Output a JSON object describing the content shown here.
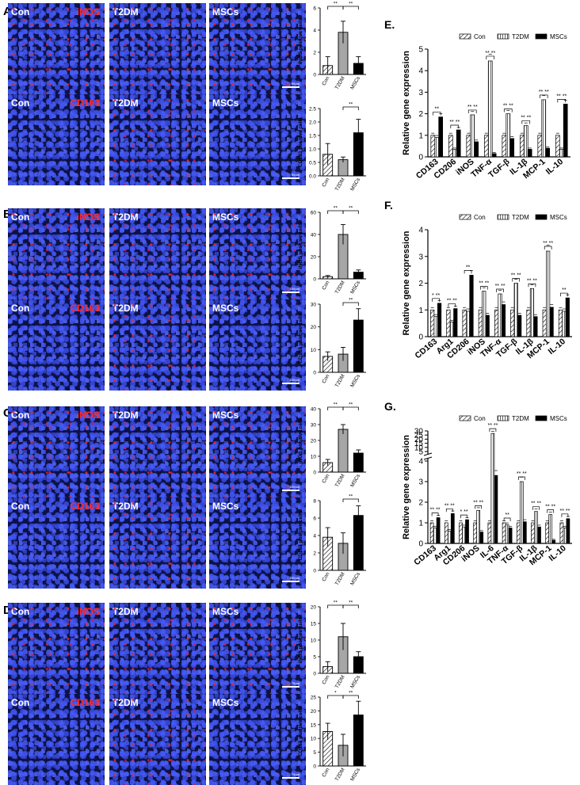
{
  "panels": [
    {
      "letter": "A.",
      "rows": [
        {
          "marker": "iNOS",
          "scale": "50μm"
        },
        {
          "marker": "CD163",
          "scale": "50μm"
        }
      ]
    },
    {
      "letter": "B.",
      "rows": [
        {
          "marker": "iNOS",
          "scale": "100μm"
        },
        {
          "marker": "CD163",
          "scale": "100μm"
        }
      ]
    },
    {
      "letter": "C.",
      "rows": [
        {
          "marker": "iNOS",
          "scale": "100μm"
        },
        {
          "marker": "CD163",
          "scale": "100μm"
        }
      ]
    },
    {
      "letter": "D.",
      "rows": [
        {
          "marker": "iNOS",
          "scale": "75μm"
        },
        {
          "marker": "CD163",
          "scale": "75μm"
        }
      ]
    }
  ],
  "groups": [
    "Con",
    "T2DM",
    "MSCs"
  ],
  "colors": {
    "con": "#ffffff",
    "t2dm": "#a6a6a6",
    "mscs": "#000000",
    "red_label": "#ff2a2a"
  },
  "chart_data": [
    {
      "type": "bar",
      "id": "A-iNOS",
      "categories": [
        "Con",
        "T2DM",
        "MSCs"
      ],
      "values": [
        0.8,
        3.8,
        1.0
      ],
      "errors": [
        0.8,
        1.0,
        0.6
      ],
      "ylabel": "iNOS positive cells",
      "ylim": [
        0,
        6
      ],
      "yticks": [
        0,
        2,
        4,
        6
      ],
      "sig": [
        {
          "from": 0,
          "to": 1,
          "label": "**"
        },
        {
          "from": 1,
          "to": 2,
          "label": "**"
        }
      ]
    },
    {
      "type": "bar",
      "id": "A-CD163",
      "categories": [
        "Con",
        "T2DM",
        "MSCs"
      ],
      "values": [
        0.8,
        0.6,
        1.6
      ],
      "errors": [
        0.4,
        0.1,
        0.5
      ],
      "ylabel": "CD163 positive cells",
      "ylim": [
        0,
        2.5
      ],
      "yticks": [
        0,
        0.5,
        1.0,
        1.5,
        2.0,
        2.5
      ],
      "yticklabels": [
        "0.0",
        "0.5",
        "1.0",
        "1.5",
        "2.0",
        "2.5"
      ],
      "sig": [
        {
          "from": 1,
          "to": 2,
          "label": "**"
        }
      ]
    },
    {
      "type": "bar",
      "id": "B-iNOS",
      "categories": [
        "Con",
        "T2DM",
        "MSCs"
      ],
      "values": [
        2,
        40,
        6
      ],
      "errors": [
        1,
        9,
        2
      ],
      "ylabel": "iNOS positive cells",
      "ylim": [
        0,
        60
      ],
      "yticks": [
        0,
        20,
        40,
        60
      ],
      "sig": [
        {
          "from": 0,
          "to": 1,
          "label": "**"
        },
        {
          "from": 1,
          "to": 2,
          "label": "**"
        }
      ]
    },
    {
      "type": "bar",
      "id": "B-CD163",
      "categories": [
        "Con",
        "T2DM",
        "MSCs"
      ],
      "values": [
        7,
        8,
        23
      ],
      "errors": [
        2,
        3,
        5
      ],
      "ylabel": "CD163 positive cells",
      "ylim": [
        0,
        30
      ],
      "yticks": [
        0,
        10,
        20,
        30
      ],
      "sig": [
        {
          "from": 1,
          "to": 2,
          "label": "**"
        }
      ]
    },
    {
      "type": "bar",
      "id": "C-iNOS",
      "categories": [
        "Con",
        "T2DM",
        "MSCs"
      ],
      "values": [
        6,
        27,
        12
      ],
      "errors": [
        2,
        3,
        2
      ],
      "ylabel": "iNOS positive cells",
      "ylim": [
        0,
        40
      ],
      "yticks": [
        0,
        10,
        20,
        30,
        40
      ],
      "sig": [
        {
          "from": 0,
          "to": 1,
          "label": "**"
        },
        {
          "from": 1,
          "to": 2,
          "label": "**"
        }
      ]
    },
    {
      "type": "bar",
      "id": "C-CD163",
      "categories": [
        "Con",
        "T2DM",
        "MSCs"
      ],
      "values": [
        3.8,
        3.1,
        6.3
      ],
      "errors": [
        1.1,
        1.2,
        1.1
      ],
      "ylabel": "CD163 positive cells",
      "ylim": [
        0,
        8
      ],
      "yticks": [
        0,
        2,
        4,
        6,
        8
      ],
      "sig": [
        {
          "from": 1,
          "to": 2,
          "label": "**"
        }
      ]
    },
    {
      "type": "bar",
      "id": "D-iNOS",
      "categories": [
        "Con",
        "T2DM",
        "MSCs"
      ],
      "values": [
        2,
        11,
        5
      ],
      "errors": [
        1.5,
        4,
        1.5
      ],
      "ylabel": "iNOS positive cells",
      "ylim": [
        0,
        20
      ],
      "yticks": [
        0,
        5,
        10,
        15,
        20
      ],
      "sig": [
        {
          "from": 0,
          "to": 1,
          "label": "**"
        },
        {
          "from": 1,
          "to": 2,
          "label": "**"
        }
      ]
    },
    {
      "type": "bar",
      "id": "D-CD163",
      "categories": [
        "Con",
        "T2DM",
        "MSCs"
      ],
      "values": [
        12.5,
        7.5,
        18.5
      ],
      "errors": [
        3,
        4,
        5
      ],
      "ylabel": "CD163 positive cells",
      "ylim": [
        0,
        25
      ],
      "yticks": [
        0,
        5,
        10,
        15,
        20,
        25
      ],
      "sig": [
        {
          "from": 0,
          "to": 1,
          "label": "*"
        },
        {
          "from": 1,
          "to": 2,
          "label": "**"
        }
      ]
    },
    {
      "type": "bar",
      "id": "E",
      "letter": "E.",
      "ylabel": "Relative gene expression",
      "ylim": [
        0,
        5
      ],
      "yticks": [
        0,
        1,
        2,
        3,
        4,
        5
      ],
      "categories": [
        "CD163",
        "CD206",
        "iNOS",
        "TNF-α",
        "TGF-β",
        "IL-1β",
        "MCP-1",
        "IL-10"
      ],
      "series": [
        {
          "name": "Con",
          "values": [
            1,
            1,
            1,
            1,
            1,
            1,
            1,
            1
          ]
        },
        {
          "name": "T2DM",
          "values": [
            0.9,
            0.35,
            1.95,
            4.45,
            2.0,
            1.45,
            2.65,
            0.35
          ]
        },
        {
          "name": "MSCs",
          "values": [
            1.85,
            1.25,
            0.7,
            0.15,
            0.85,
            0.35,
            0.4,
            2.45
          ]
        }
      ],
      "sig": [
        "**",
        "** **",
        "** **",
        "** **",
        "** **",
        "** **",
        "** **",
        "** **"
      ]
    },
    {
      "type": "bar",
      "id": "F",
      "letter": "F.",
      "ylabel": "Relative gene expression",
      "ylim": [
        0,
        4
      ],
      "yticks": [
        0,
        1,
        2,
        3,
        4
      ],
      "categories": [
        "CD163",
        "Arg1",
        "CD206",
        "iNOS",
        "TNF-α",
        "TGF-β",
        "IL-1β",
        "MCP-1",
        "IL-10"
      ],
      "series": [
        {
          "name": "Con",
          "values": [
            1,
            1,
            1,
            1,
            1,
            1,
            1,
            1,
            1
          ]
        },
        {
          "name": "T2DM",
          "values": [
            0.75,
            0.55,
            0.95,
            1.7,
            1.6,
            2.0,
            1.8,
            3.2,
            0.95
          ]
        },
        {
          "name": "MSCs",
          "values": [
            1.25,
            1.05,
            2.3,
            0.8,
            1.2,
            0.8,
            0.75,
            1.1,
            1.45
          ]
        }
      ],
      "sig": [
        "* **",
        "** **",
        "**",
        "** **",
        "** **",
        "** **",
        "** **",
        "** **",
        "**"
      ]
    },
    {
      "type": "bar",
      "id": "G",
      "letter": "G.",
      "ylabel": "Relative gene expression",
      "broken_axis": true,
      "yticks_low": [
        0,
        1,
        2,
        3,
        4
      ],
      "yticks_high": [
        5,
        10,
        15,
        20,
        25,
        30
      ],
      "categories": [
        "CD163",
        "Arg1",
        "CD206",
        "iNOS",
        "IL-6",
        "TNF-α",
        "TGF-β",
        "IL-1β",
        "MCP-1",
        "IL-10"
      ],
      "series": [
        {
          "name": "Con",
          "values": [
            1,
            1,
            1,
            1,
            1,
            1,
            1,
            1,
            1,
            1
          ]
        },
        {
          "name": "T2DM",
          "values": [
            0.75,
            0.6,
            0.8,
            1.6,
            27,
            0.9,
            3.0,
            1.55,
            1.4,
            0.75
          ]
        },
        {
          "name": "MSCs",
          "values": [
            1.25,
            1.45,
            1.15,
            0.55,
            3.3,
            0.75,
            1.05,
            0.8,
            0.15,
            1.2
          ]
        }
      ],
      "sig": [
        "** **",
        "** **",
        "* **",
        "** **",
        "** **",
        "**",
        "** **",
        "** **",
        "** **",
        "** **"
      ]
    }
  ]
}
